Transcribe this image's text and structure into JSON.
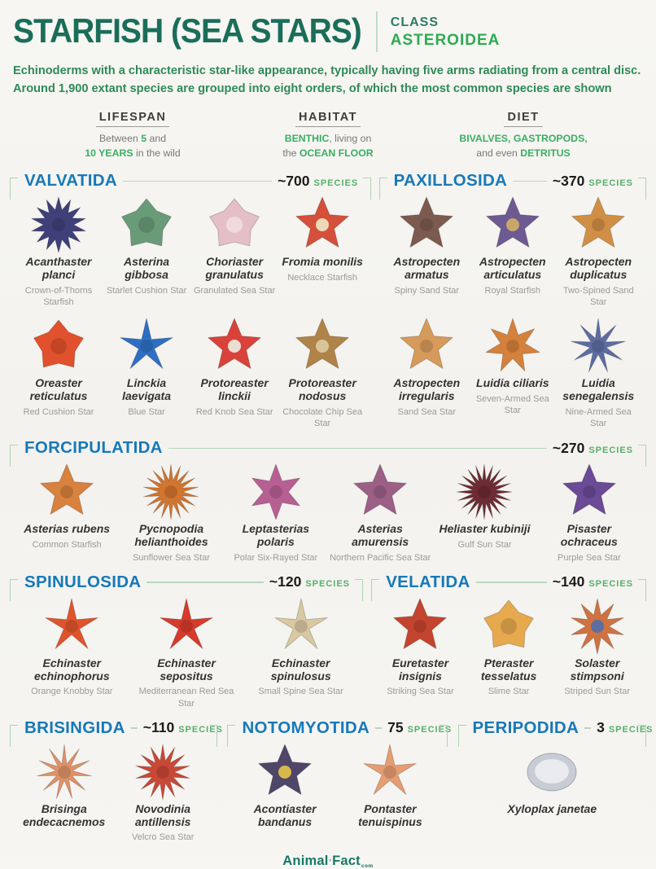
{
  "header": {
    "title": "STARFISH (SEA STARS)",
    "class_label": "CLASS",
    "class_value": "ASTEROIDEA"
  },
  "description": {
    "line1": "Echinoderms with a characteristic star-like appearance, typically having five arms radiating from a central disc.",
    "line2": "Around 1,900 extant species are grouped into eight orders, of which the most common species are shown"
  },
  "facts": [
    {
      "label": "LIFESPAN",
      "segments": [
        {
          "t": "Between "
        },
        {
          "t": "5",
          "g": true
        },
        {
          "t": " and"
        },
        {
          "br": true
        },
        {
          "t": "10 YEARS",
          "g": true
        },
        {
          "t": " in the wild"
        }
      ]
    },
    {
      "label": "HABITAT",
      "segments": [
        {
          "t": "BENTHIC",
          "g": true
        },
        {
          "t": ", living on"
        },
        {
          "br": true
        },
        {
          "t": "the "
        },
        {
          "t": "OCEAN FLOOR",
          "g": true
        }
      ]
    },
    {
      "label": "DIET",
      "segments": [
        {
          "t": "BIVALVES, GASTROPODS,",
          "g": true
        },
        {
          "br": true
        },
        {
          "t": "and even "
        },
        {
          "t": "DETRITUS",
          "g": true
        }
      ]
    }
  ],
  "accents": {
    "order_blue": "#1779b8",
    "species_green": "#56b06a",
    "title_teal": "#1a6e59"
  },
  "sections": [
    {
      "id": "valvatida",
      "title": "VALVATIDA",
      "count": "~700",
      "species_word": "SPECIES",
      "cols": 4,
      "species": [
        {
          "sci": "Acanthaster planci",
          "common": "Crown-of-Thorns Starfish",
          "type": "spiky",
          "arms": 14,
          "color": "#3f3f7a"
        },
        {
          "sci": "Asterina gibbosa",
          "common": "Starlet Cushion Star",
          "type": "cushion",
          "arms": 5,
          "color": "#6a9b78"
        },
        {
          "sci": "Choriaster granulatus",
          "common": "Granulated Sea Star",
          "type": "cushion",
          "arms": 5,
          "color": "#e4bfc7",
          "center": "#f0dade"
        },
        {
          "sci": "Fromia monilis",
          "common": "Necklace Starfish",
          "type": "star",
          "arms": 5,
          "color": "#d4503a",
          "center": "#ecd9b8"
        },
        {
          "sci": "Oreaster reticulatus",
          "common": "Red Cushion Star",
          "type": "cushion",
          "arms": 5,
          "color": "#e2512d"
        },
        {
          "sci": "Linckia laevigata",
          "common": "Blue Star",
          "type": "thin",
          "arms": 5,
          "color": "#2e6fc4"
        },
        {
          "sci": "Protoreaster linckii",
          "common": "Red Knob Sea Star",
          "type": "star",
          "arms": 5,
          "color": "#d9423a",
          "center": "#eadfd2"
        },
        {
          "sci": "Protoreaster nodosus",
          "common": "Chocolate Chip Sea Star",
          "type": "star",
          "arms": 5,
          "color": "#b08348",
          "center": "#d9c49a"
        }
      ]
    },
    {
      "id": "paxillosida",
      "title": "PAXILLOSIDA",
      "count": "~370",
      "species_word": "SPECIES",
      "cols": 3,
      "species": [
        {
          "sci": "Astropecten armatus",
          "common": "Spiny Sand Star",
          "type": "star",
          "arms": 5,
          "color": "#7d5a50"
        },
        {
          "sci": "Astropecten articulatus",
          "common": "Royal Starfish",
          "type": "star",
          "arms": 5,
          "color": "#6e5a92",
          "center": "#c9a76a"
        },
        {
          "sci": "Astropecten duplicatus",
          "common": "Two-Spined Sand Star",
          "type": "star",
          "arms": 5,
          "color": "#d18f45"
        },
        {
          "sci": "Astropecten irregularis",
          "common": "Sand Sea Star",
          "type": "star",
          "arms": 5,
          "color": "#d69a5a"
        },
        {
          "sci": "Luidia ciliaris",
          "common": "Seven-Armed Sea Star",
          "type": "star",
          "arms": 7,
          "color": "#d4813c"
        },
        {
          "sci": "Luidia senegalensis",
          "common": "Nine-Armed Sea Star",
          "type": "thin",
          "arms": 9,
          "color": "#5d6da1"
        }
      ]
    },
    {
      "id": "forcipulatida",
      "title": "FORCIPULATIDA",
      "count": "~270",
      "species_word": "SPECIES",
      "cols": 6,
      "species": [
        {
          "sci": "Asterias rubens",
          "common": "Common Starfish",
          "type": "star",
          "arms": 5,
          "color": "#d8823d"
        },
        {
          "sci": "Pycnopodia helianthoides",
          "common": "Sunflower Sea Star",
          "type": "sun",
          "arms": 18,
          "color": "#d2752f"
        },
        {
          "sci": "Leptasterias polaris",
          "common": "Polar Six-Rayed Star",
          "type": "star",
          "arms": 6,
          "color": "#b75f93"
        },
        {
          "sci": "Asterias amurensis",
          "common": "Northern Pacific Sea Star",
          "type": "star",
          "arms": 5,
          "color": "#9c5f86"
        },
        {
          "sci": "Heliaster kubiniji",
          "common": "Gulf Sun Star",
          "type": "sun",
          "arms": 20,
          "color": "#6e2b34"
        },
        {
          "sci": "Pisaster ochraceus",
          "common": "Purple Sea Star",
          "type": "star",
          "arms": 5,
          "color": "#6b4a96"
        }
      ]
    },
    {
      "id": "spinulosida",
      "title": "SPINULOSIDA",
      "count": "~120",
      "species_word": "SPECIES",
      "cols": 3,
      "species": [
        {
          "sci": "Echinaster echinophorus",
          "common": "Orange Knobby Star",
          "type": "thin",
          "arms": 5,
          "color": "#e0542d"
        },
        {
          "sci": "Echinaster sepositus",
          "common": "Mediterranean Red Sea Star",
          "type": "thin",
          "arms": 5,
          "color": "#d63b2b"
        },
        {
          "sci": "Echinaster spinulosus",
          "common": "Small Spine Sea Star",
          "type": "thin",
          "arms": 5,
          "color": "#d9c9a2"
        }
      ]
    },
    {
      "id": "velatida",
      "title": "VELATIDA",
      "count": "~140",
      "species_word": "SPECIES",
      "cols": 3,
      "species": [
        {
          "sci": "Euretaster insignis",
          "common": "Striking Sea Star",
          "type": "star",
          "arms": 5,
          "color": "#c4452f"
        },
        {
          "sci": "Pteraster tesselatus",
          "common": "Slime Star",
          "type": "cushion",
          "arms": 5,
          "color": "#e7a94e"
        },
        {
          "sci": "Solaster stimpsoni",
          "common": "Striped Sun Star",
          "type": "sun",
          "arms": 10,
          "color": "#cf7340",
          "center": "#5d6da1"
        }
      ]
    },
    {
      "id": "brisingida",
      "title": "BRISINGIDA",
      "count": "~110",
      "species_word": "SPECIES",
      "cols": 2,
      "species": [
        {
          "sci": "Brisinga endecacnemos",
          "common": "",
          "type": "thin",
          "arms": 11,
          "color": "#e09268"
        },
        {
          "sci": "Novodinia antillensis",
          "common": "Velcro Sea Star",
          "type": "sun",
          "arms": 14,
          "color": "#c94836"
        }
      ]
    },
    {
      "id": "notomyotida",
      "title": "NOTOMYOTIDA",
      "count": "75",
      "species_word": "SPECIES",
      "cols": 2,
      "species": [
        {
          "sci": "Acontiaster bandanus",
          "common": "",
          "type": "star",
          "arms": 5,
          "color": "#4f4668",
          "center": "#d8b84a"
        },
        {
          "sci": "Pontaster tenuispinus",
          "common": "",
          "type": "thin",
          "arms": 5,
          "color": "#e69d72"
        }
      ]
    },
    {
      "id": "peripodida",
      "title": "PERIPODIDA",
      "count": "3",
      "species_word": "SPECIES",
      "cols": 1,
      "species": [
        {
          "sci": "Xyloplax janetae",
          "common": "",
          "type": "disc",
          "arms": 0,
          "color": "#c7ccd5",
          "center": "#e9ebef"
        }
      ]
    }
  ],
  "footer": {
    "logo_animal": "Animal",
    "logo_apos": "'",
    "logo_fact": "Fact",
    "logo_tld": "com"
  }
}
